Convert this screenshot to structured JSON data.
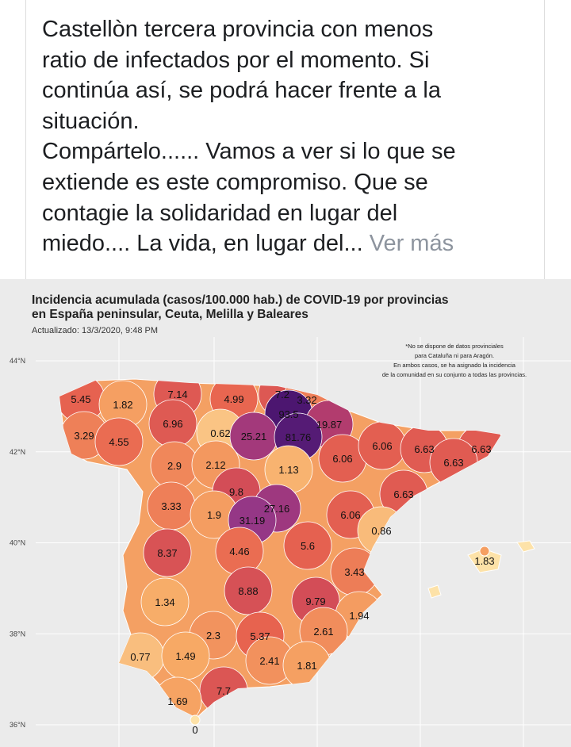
{
  "post": {
    "lines": [
      "Castellòn tercera provincia con menos",
      "ratio de infectados por el momento. Si",
      "continúa así, se podrá hacer frente a la",
      "situación.",
      "Compártelo...... Vamos a ver si lo que se",
      "extiende es este compromiso. Que se",
      "contagie la solidaridad en lugar del",
      "miedo.... La vida, en lugar del..."
    ],
    "see_more": "Ver más"
  },
  "map": {
    "title": [
      "Incidencia acumulada (casos/100.000 hab.) de COVID-19 por provincias",
      "en España peninsular, Ceuta, Melilla y Baleares"
    ],
    "updated": "Actualizado: 13/3/2020, 9:48 PM",
    "note": [
      "*No se dispone de datos provinciales",
      "para Cataluña ni para Aragón.",
      "En ambos casos, se ha asignado la incidencia",
      "de la comunidad en su conjunto a todas las provincias."
    ],
    "lat_ticks": [
      {
        "value": 44,
        "label": "44°N"
      },
      {
        "value": 42,
        "label": "42°N"
      },
      {
        "value": 40,
        "label": "40°N"
      },
      {
        "value": 38,
        "label": "38°N"
      },
      {
        "value": 36,
        "label": "36°N"
      }
    ],
    "lat_lim": [
      36,
      44
    ],
    "color_scale": [
      "#fde2a8",
      "#f7a965",
      "#e8644f",
      "#c63f5c",
      "#8a3590",
      "#4c1670"
    ],
    "values": [
      5.45,
      1.82,
      7.14,
      4.99,
      7.2,
      3.32,
      93.5,
      19.87,
      3.29,
      4.55,
      6.96,
      0.62,
      25.21,
      81.76,
      6.06,
      6.06,
      6.63,
      6.63,
      6.63,
      2.9,
      2.12,
      1.13,
      9.8,
      6.63,
      3.33,
      1.9,
      27.16,
      31.19,
      6.06,
      0.86,
      8.37,
      4.46,
      5.6,
      1.83,
      3.43,
      1.34,
      8.88,
      9.79,
      1.94,
      2.3,
      5.37,
      2.61,
      0.77,
      1.49,
      2.41,
      1.81,
      7.7,
      1.69,
      0
    ]
  }
}
